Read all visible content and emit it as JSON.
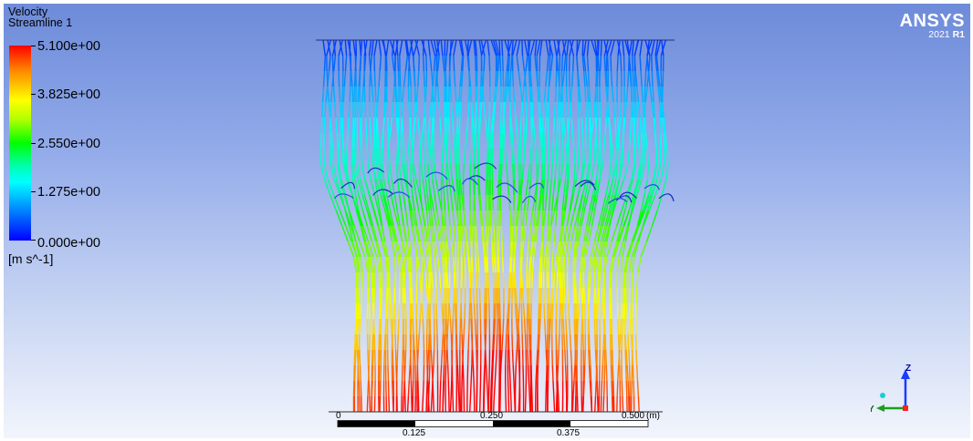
{
  "legend": {
    "title_line1": "Velocity",
    "title_line2": "Streamline 1",
    "ticks": [
      "5.100e+00",
      "3.825e+00",
      "2.550e+00",
      "1.275e+00",
      "0.000e+00"
    ],
    "units": "[m s^-1]"
  },
  "logo": {
    "word": "ANSYS",
    "version_year": "2021",
    "version_release": "R1"
  },
  "scale": {
    "top_labels": [
      "0",
      "0.250",
      "0.500"
    ],
    "unit": "(m)",
    "bottom_labels": [
      "0.125",
      "0.375"
    ]
  },
  "axes": {
    "z_label": "Z",
    "y_label": "Y"
  },
  "colors": {
    "background_top": "#6d8bd9",
    "background_bottom": "#f2f5fc",
    "low_velocity": "#0000ff",
    "high_velocity": "#ff0000",
    "z_axis": "#1a3cff",
    "y_axis": "#1aa01a",
    "origin": "#ff2020"
  }
}
